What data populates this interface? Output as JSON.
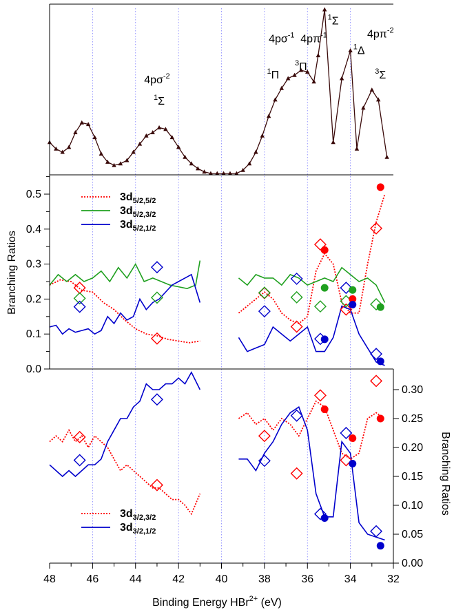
{
  "colors": {
    "top_spectrum": "#3a0a0a",
    "red": "#ff0000",
    "green": "#1fa01f",
    "blue": "#0000cc",
    "grid": "#8080ff"
  },
  "xaxis": {
    "label": "Binding Energy HBr",
    "label_sup": "2+",
    "label_unit": " (eV)",
    "ticks": [
      48,
      46,
      44,
      42,
      40,
      38,
      36,
      34,
      32
    ],
    "range": [
      48,
      32
    ]
  },
  "top_panel": {
    "annotations": [
      {
        "id": "a1",
        "lead": "",
        "base": "4pσ",
        "sup": "-2",
        "x": 43.0,
        "level": 0.55
      },
      {
        "id": "a2",
        "lead": "1",
        "base": "Σ",
        "sup": "",
        "x": 42.9,
        "level": 0.42
      },
      {
        "id": "a3",
        "lead": "",
        "base": "4pσ",
        "sup": "-1",
        "x": 37.2,
        "level": 0.8
      },
      {
        "id": "a4",
        "lead": "",
        "base": "4pπ",
        "sup": "-1",
        "x": 35.7,
        "level": 0.8
      },
      {
        "id": "a5",
        "lead": "1",
        "base": "Π",
        "sup": "",
        "x": 37.6,
        "level": 0.58
      },
      {
        "id": "a6",
        "lead": "3",
        "base": "Π",
        "sup": "",
        "x": 36.3,
        "level": 0.63
      },
      {
        "id": "a7",
        "lead": "1",
        "base": "Σ",
        "sup": "",
        "x": 34.8,
        "level": 0.91
      },
      {
        "id": "a8",
        "lead": "1",
        "base": "Δ",
        "sup": "",
        "x": 33.6,
        "level": 0.73
      },
      {
        "id": "a9",
        "lead": "",
        "base": "4pπ",
        "sup": "-2",
        "x": 32.6,
        "level": 0.83
      },
      {
        "id": "a10",
        "lead": "3",
        "base": "Σ",
        "sup": "",
        "x": 32.6,
        "level": 0.58
      }
    ]
  },
  "middle_panel": {
    "ylabel": "Branching Ratios",
    "yticks": [
      "0.0",
      "0.1",
      "0.2",
      "0.3",
      "0.4",
      "0.5"
    ],
    "legend": [
      {
        "base": "3d",
        "sub": "5/2,5/2",
        "style": "dotted",
        "color": "#ff0000"
      },
      {
        "base": "3d",
        "sub": "5/2,3/2",
        "style": "solid",
        "color": "#1fa01f"
      },
      {
        "base": "3d",
        "sub": "5/2,1/2",
        "style": "solid",
        "color": "#0000cc"
      }
    ]
  },
  "bottom_panel": {
    "ylabel": "Branching Ratios",
    "yticks": [
      "0.00",
      "0.05",
      "0.10",
      "0.15",
      "0.20",
      "0.25",
      "0.30"
    ],
    "legend": [
      {
        "base": "3d",
        "sub": "3/2,3/2",
        "style": "dotted",
        "color": "#ff0000"
      },
      {
        "base": "3d",
        "sub": "3/2,1/2",
        "style": "solid",
        "color": "#0000cc"
      }
    ]
  },
  "chart_data": [
    {
      "type": "line",
      "panel": "top",
      "xlim": [
        48,
        32
      ],
      "ylim": [
        0,
        1
      ],
      "series": [
        {
          "color": "#3a0a0a",
          "marker": "triangle",
          "x": [
            48.0,
            47.7,
            47.4,
            47.1,
            46.8,
            46.5,
            46.2,
            45.9,
            45.6,
            45.3,
            45.0,
            44.7,
            44.4,
            44.1,
            43.8,
            43.5,
            43.2,
            42.9,
            42.6,
            42.3,
            42.0,
            41.7,
            41.4,
            41.1,
            40.8,
            40.5,
            40.2,
            39.9,
            39.6,
            39.3,
            39.0,
            38.7,
            38.4,
            38.1,
            37.8,
            37.5,
            37.2,
            36.9,
            36.6,
            36.3,
            36.0,
            35.7,
            35.5,
            35.2,
            34.8,
            34.4,
            34.0,
            33.7,
            33.4,
            33.0,
            32.7,
            32.3
          ],
          "y": [
            0.19,
            0.15,
            0.13,
            0.16,
            0.25,
            0.31,
            0.3,
            0.22,
            0.12,
            0.07,
            0.05,
            0.06,
            0.08,
            0.13,
            0.18,
            0.23,
            0.25,
            0.28,
            0.27,
            0.22,
            0.16,
            0.1,
            0.06,
            0.03,
            0.01,
            0.0,
            0.0,
            0.0,
            0.0,
            0.0,
            0.02,
            0.06,
            0.13,
            0.23,
            0.35,
            0.45,
            0.52,
            0.58,
            0.6,
            0.63,
            0.62,
            0.56,
            0.72,
            1.0,
            0.19,
            0.58,
            0.75,
            0.15,
            0.4,
            0.51,
            0.45,
            0.1
          ]
        }
      ]
    },
    {
      "type": "line",
      "panel": "middle",
      "ylabel": "Branching Ratios",
      "xlim": [
        48,
        32
      ],
      "ylim": [
        0,
        0.55
      ],
      "series": [
        {
          "name": "3d5/2,5/2",
          "style": "dotted",
          "color": "#ff0000",
          "segments": [
            {
              "x": [
                48.0,
                47.5,
                47.0,
                46.5,
                46.0,
                45.5,
                45.0,
                44.5,
                44.0,
                43.5,
                43.0,
                42.5,
                42.0,
                41.5,
                41.0
              ],
              "y": [
                0.24,
                0.255,
                0.25,
                0.225,
                0.22,
                0.19,
                0.17,
                0.14,
                0.115,
                0.1,
                0.095,
                0.085,
                0.08,
                0.075,
                0.08
              ]
            },
            {
              "x": [
                39.2,
                38.8,
                38.4,
                38.0,
                37.6,
                37.2,
                36.8,
                36.4,
                36.0,
                35.6,
                35.2,
                34.8,
                34.4,
                34.0,
                33.6,
                33.2,
                32.8,
                32.4
              ],
              "y": [
                0.16,
                0.18,
                0.2,
                0.22,
                0.2,
                0.16,
                0.14,
                0.13,
                0.15,
                0.28,
                0.33,
                0.3,
                0.19,
                0.16,
                0.16,
                0.3,
                0.42,
                0.5
              ]
            }
          ]
        },
        {
          "name": "3d5/2,3/2",
          "style": "solid",
          "color": "#1fa01f",
          "segments": [
            {
              "x": [
                48.0,
                47.6,
                47.2,
                46.8,
                46.4,
                46.0,
                45.6,
                45.2,
                44.8,
                44.4,
                44.0,
                43.6,
                43.2,
                42.8,
                42.4,
                42.0,
                41.6,
                41.2,
                41.0
              ],
              "y": [
                0.24,
                0.27,
                0.25,
                0.27,
                0.25,
                0.26,
                0.28,
                0.25,
                0.29,
                0.26,
                0.3,
                0.25,
                0.26,
                0.25,
                0.24,
                0.235,
                0.23,
                0.24,
                0.31
              ]
            },
            {
              "x": [
                39.2,
                38.8,
                38.4,
                38.0,
                37.6,
                37.2,
                36.8,
                36.4,
                36.0,
                35.6,
                35.2,
                34.8,
                34.4,
                34.0,
                33.6,
                33.2,
                32.8,
                32.4
              ],
              "y": [
                0.26,
                0.24,
                0.27,
                0.26,
                0.26,
                0.24,
                0.27,
                0.26,
                0.24,
                0.25,
                0.26,
                0.25,
                0.29,
                0.27,
                0.25,
                0.26,
                0.24,
                0.19
              ]
            }
          ]
        },
        {
          "name": "3d5/2,1/2",
          "style": "solid",
          "color": "#0000cc",
          "segments": [
            {
              "x": [
                48.0,
                47.7,
                47.4,
                47.1,
                46.8,
                46.5,
                46.2,
                45.9,
                45.6,
                45.3,
                45.0,
                44.7,
                44.4,
                44.1,
                43.8,
                43.5,
                43.2,
                42.9,
                42.6,
                42.3,
                42.0,
                41.7,
                41.4,
                41.0
              ],
              "y": [
                0.12,
                0.125,
                0.1,
                0.115,
                0.105,
                0.11,
                0.115,
                0.1,
                0.11,
                0.15,
                0.13,
                0.16,
                0.14,
                0.15,
                0.2,
                0.17,
                0.19,
                0.2,
                0.22,
                0.24,
                0.25,
                0.26,
                0.27,
                0.19
              ]
            },
            {
              "x": [
                39.2,
                38.8,
                38.4,
                38.0,
                37.6,
                37.2,
                36.8,
                36.4,
                36.0,
                35.6,
                35.2,
                34.8,
                34.4,
                34.0,
                33.6,
                33.2,
                32.8,
                32.4
              ],
              "y": [
                0.09,
                0.05,
                0.06,
                0.07,
                0.12,
                0.1,
                0.08,
                0.1,
                0.12,
                0.05,
                0.05,
                0.09,
                0.18,
                0.17,
                0.1,
                0.06,
                0.02,
                0.01
              ]
            }
          ]
        }
      ],
      "markers": [
        {
          "series": "3d5/2,5/2",
          "shape": "diamond",
          "x": [
            46.6,
            43.0,
            38.0,
            36.5,
            35.4,
            34.2,
            32.8
          ],
          "y": [
            0.232,
            0.087,
            0.217,
            0.121,
            0.356,
            0.17,
            0.402
          ]
        },
        {
          "series": "3d5/2,3/2",
          "shape": "diamond",
          "x": [
            46.6,
            43.0,
            38.0,
            36.5,
            35.4,
            34.2,
            32.8
          ],
          "y": [
            0.202,
            0.204,
            0.218,
            0.205,
            0.179,
            0.194,
            0.185
          ]
        },
        {
          "series": "3d5/2,1/2",
          "shape": "diamond",
          "x": [
            46.6,
            43.0,
            38.0,
            36.5,
            35.4,
            34.2,
            32.8
          ],
          "y": [
            0.178,
            0.291,
            0.165,
            0.258,
            0.086,
            0.232,
            0.043
          ]
        },
        {
          "series": "3d5/2,5/2",
          "shape": "circle",
          "x": [
            35.2,
            33.9,
            32.6
          ],
          "y": [
            0.34,
            0.2,
            0.52
          ]
        },
        {
          "series": "3d5/2,3/2",
          "shape": "circle",
          "x": [
            35.2,
            33.9,
            32.6
          ],
          "y": [
            0.232,
            0.226,
            0.177
          ]
        },
        {
          "series": "3d5/2,1/2",
          "shape": "circle",
          "x": [
            35.2,
            33.9,
            32.6
          ],
          "y": [
            0.085,
            0.184,
            0.022
          ]
        }
      ]
    },
    {
      "type": "line",
      "panel": "bottom",
      "ylabel": "Branching Ratios",
      "xlim": [
        48,
        32
      ],
      "ylim": [
        0,
        0.34
      ],
      "series": [
        {
          "name": "3d3/2,3/2",
          "style": "dotted",
          "color": "#ff0000",
          "segments": [
            {
              "x": [
                48.0,
                47.7,
                47.4,
                47.1,
                46.8,
                46.5,
                46.2,
                45.9,
                45.6,
                45.3,
                45.0,
                44.7,
                44.4,
                44.1,
                43.8,
                43.5,
                43.2,
                42.9,
                42.6,
                42.3,
                42.0,
                41.7,
                41.4,
                41.0
              ],
              "y": [
                0.21,
                0.22,
                0.21,
                0.23,
                0.21,
                0.22,
                0.2,
                0.22,
                0.21,
                0.2,
                0.18,
                0.16,
                0.17,
                0.16,
                0.15,
                0.14,
                0.13,
                0.13,
                0.12,
                0.11,
                0.11,
                0.1,
                0.085,
                0.12
              ]
            },
            {
              "x": [
                39.2,
                38.8,
                38.4,
                38.0,
                37.6,
                37.2,
                36.8,
                36.4,
                36.0,
                35.6,
                35.2,
                34.8,
                34.4,
                34.0,
                33.6,
                33.2,
                32.8,
                32.4
              ],
              "y": [
                0.25,
                0.26,
                0.24,
                0.25,
                0.23,
                0.25,
                0.24,
                0.22,
                0.25,
                0.28,
                0.27,
                0.23,
                0.19,
                0.18,
                0.19,
                0.25,
                0.26,
                0.25
              ]
            }
          ]
        },
        {
          "name": "3d3/2,1/2",
          "style": "solid",
          "color": "#0000cc",
          "segments": [
            {
              "x": [
                48.0,
                47.7,
                47.4,
                47.1,
                46.8,
                46.5,
                46.2,
                45.9,
                45.6,
                45.3,
                45.0,
                44.7,
                44.4,
                44.1,
                43.8,
                43.5,
                43.2,
                42.9,
                42.6,
                42.3,
                42.0,
                41.7,
                41.4,
                41.0
              ],
              "y": [
                0.17,
                0.16,
                0.15,
                0.16,
                0.15,
                0.16,
                0.17,
                0.17,
                0.18,
                0.21,
                0.23,
                0.25,
                0.25,
                0.27,
                0.28,
                0.31,
                0.3,
                0.3,
                0.31,
                0.31,
                0.32,
                0.31,
                0.33,
                0.3
              ]
            },
            {
              "x": [
                39.2,
                38.8,
                38.4,
                38.0,
                37.6,
                37.2,
                36.8,
                36.4,
                36.0,
                35.6,
                35.2,
                34.8,
                34.4,
                34.0,
                33.6,
                33.2,
                32.8,
                32.4
              ],
              "y": [
                0.18,
                0.18,
                0.16,
                0.19,
                0.21,
                0.24,
                0.26,
                0.27,
                0.23,
                0.12,
                0.08,
                0.08,
                0.21,
                0.19,
                0.07,
                0.05,
                0.045,
                0.04
              ]
            }
          ]
        }
      ],
      "markers": [
        {
          "series": "3d3/2,3/2",
          "shape": "diamond",
          "x": [
            46.6,
            43.0,
            38.0,
            36.5,
            35.4,
            34.2,
            32.8
          ],
          "y": [
            0.218,
            0.135,
            0.22,
            0.155,
            0.29,
            0.178,
            0.315
          ]
        },
        {
          "series": "3d3/2,1/2",
          "shape": "diamond",
          "x": [
            46.6,
            43.0,
            38.0,
            36.5,
            35.4,
            34.2,
            32.8
          ],
          "y": [
            0.178,
            0.283,
            0.177,
            0.255,
            0.085,
            0.225,
            0.055
          ]
        },
        {
          "series": "3d3/2,3/2",
          "shape": "circle",
          "x": [
            35.2,
            33.9,
            32.6
          ],
          "y": [
            0.266,
            0.216,
            0.25
          ]
        },
        {
          "series": "3d3/2,1/2",
          "shape": "circle",
          "x": [
            35.2,
            33.9,
            32.6
          ],
          "y": [
            0.078,
            0.172,
            0.03
          ]
        }
      ]
    }
  ]
}
